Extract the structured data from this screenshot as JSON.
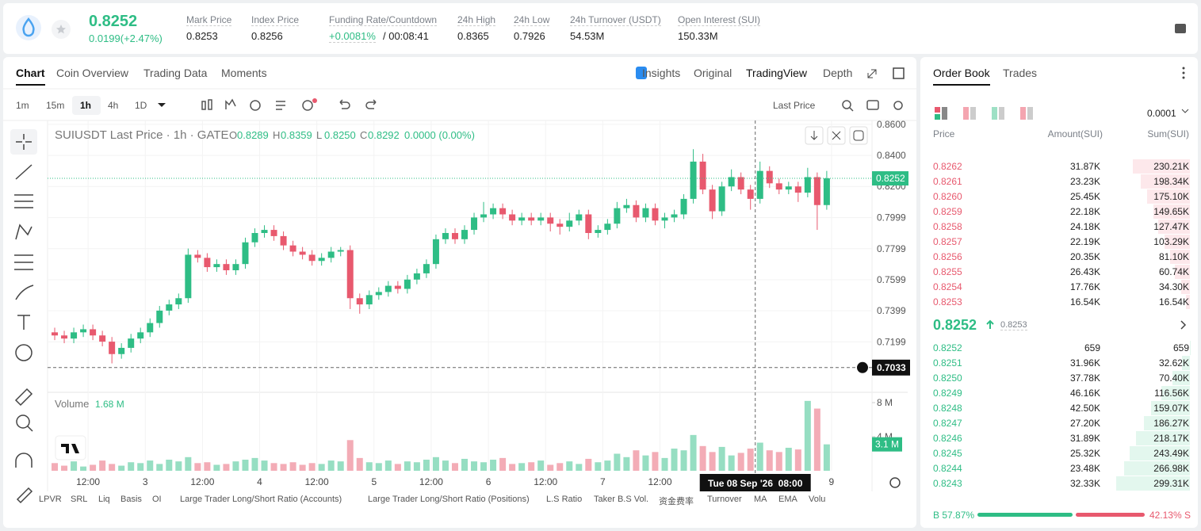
{
  "header": {
    "price": "0.8252",
    "change": "0.0199(+2.47%)",
    "stats": [
      {
        "label": "Mark Price",
        "value": "0.8253"
      },
      {
        "label": "Index Price",
        "value": "0.8256"
      },
      {
        "label": "Funding Rate/Countdown",
        "value": "+0.0081%",
        "extra": "/ 00:08:41"
      },
      {
        "label": "24h High",
        "value": "0.8365"
      },
      {
        "label": "24h Low",
        "value": "0.7926"
      },
      {
        "label": "24h Turnover (USDT)",
        "value": "54.53M"
      },
      {
        "label": "Open Interest (SUI)",
        "value": "150.33M"
      }
    ]
  },
  "tabs": [
    "Chart",
    "Coin Overview",
    "Trading Data",
    "Moments"
  ],
  "views": [
    "Insights",
    "Original",
    "TradingView",
    "Depth"
  ],
  "intervals": [
    "1m",
    "15m",
    "1h",
    "4h",
    "1D"
  ],
  "price_source": "Last Price",
  "legend": {
    "symbol": "SUIUSDT Last Price · 1h · GATE",
    "ohlc": [
      {
        "label": "O",
        "value": "0.8289"
      },
      {
        "label": "H",
        "value": "0.8359"
      },
      {
        "label": "L",
        "value": "0.8250"
      },
      {
        "label": "C",
        "value": "0.8292"
      }
    ],
    "change": "0.0000 (0.00%)"
  },
  "chart_data": {
    "type": "candlestick",
    "x": [
      -19,
      -17,
      -15,
      -13,
      -11,
      -9,
      -7,
      -5,
      -3,
      -1,
      1,
      3,
      5,
      7,
      9,
      11,
      13,
      15,
      17,
      19,
      21,
      23,
      25,
      27,
      29,
      31,
      33,
      35,
      37,
      39,
      41,
      43,
      45,
      47,
      49,
      51,
      53,
      55,
      57,
      59,
      61,
      63,
      65,
      67,
      69,
      71,
      73,
      75,
      77,
      79,
      81,
      83,
      85,
      87,
      89,
      91,
      93,
      95,
      97,
      99,
      101,
      103,
      105,
      107,
      109,
      111,
      113,
      115,
      117,
      119,
      121,
      123,
      125,
      127,
      129,
      131,
      133,
      135,
      137,
      139,
      141,
      143
    ],
    "open": [
      0.726,
      0.724,
      0.722,
      0.726,
      0.728,
      0.724,
      0.72,
      0.712,
      0.716,
      0.722,
      0.726,
      0.732,
      0.74,
      0.744,
      0.748,
      0.776,
      0.774,
      0.768,
      0.77,
      0.766,
      0.77,
      0.784,
      0.79,
      0.792,
      0.788,
      0.782,
      0.778,
      0.776,
      0.772,
      0.774,
      0.778,
      0.779,
      0.748,
      0.744,
      0.75,
      0.752,
      0.756,
      0.754,
      0.76,
      0.764,
      0.77,
      0.786,
      0.79,
      0.786,
      0.792,
      0.8,
      0.802,
      0.806,
      0.802,
      0.798,
      0.8,
      0.798,
      0.8,
      0.796,
      0.794,
      0.798,
      0.802,
      0.79,
      0.792,
      0.796,
      0.806,
      0.808,
      0.8,
      0.806,
      0.798,
      0.8,
      0.802,
      0.812,
      0.836,
      0.818,
      0.804,
      0.82,
      0.826,
      0.818,
      0.812,
      0.83,
      0.822,
      0.818,
      0.82,
      0.816,
      0.826,
      0.808
    ],
    "high": [
      0.729,
      0.727,
      0.729,
      0.731,
      0.731,
      0.727,
      0.723,
      0.719,
      0.725,
      0.729,
      0.735,
      0.743,
      0.747,
      0.751,
      0.78,
      0.779,
      0.777,
      0.773,
      0.773,
      0.773,
      0.787,
      0.793,
      0.795,
      0.795,
      0.791,
      0.785,
      0.781,
      0.779,
      0.777,
      0.781,
      0.781,
      0.782,
      0.751,
      0.753,
      0.755,
      0.759,
      0.759,
      0.763,
      0.767,
      0.773,
      0.789,
      0.793,
      0.793,
      0.795,
      0.803,
      0.81,
      0.809,
      0.809,
      0.805,
      0.803,
      0.803,
      0.803,
      0.803,
      0.799,
      0.803,
      0.805,
      0.805,
      0.795,
      0.799,
      0.81,
      0.812,
      0.811,
      0.809,
      0.809,
      0.803,
      0.805,
      0.815,
      0.844,
      0.841,
      0.821,
      0.823,
      0.831,
      0.829,
      0.821,
      0.836,
      0.833,
      0.825,
      0.823,
      0.823,
      0.832,
      0.829,
      0.83
    ],
    "low": [
      0.721,
      0.719,
      0.719,
      0.723,
      0.721,
      0.717,
      0.706,
      0.709,
      0.713,
      0.719,
      0.723,
      0.729,
      0.737,
      0.741,
      0.745,
      0.771,
      0.765,
      0.765,
      0.763,
      0.763,
      0.767,
      0.781,
      0.787,
      0.785,
      0.779,
      0.775,
      0.773,
      0.769,
      0.769,
      0.771,
      0.775,
      0.741,
      0.738,
      0.741,
      0.747,
      0.749,
      0.751,
      0.751,
      0.757,
      0.761,
      0.767,
      0.783,
      0.783,
      0.783,
      0.789,
      0.797,
      0.799,
      0.799,
      0.795,
      0.795,
      0.795,
      0.795,
      0.791,
      0.789,
      0.791,
      0.795,
      0.786,
      0.787,
      0.789,
      0.793,
      0.803,
      0.797,
      0.797,
      0.795,
      0.793,
      0.797,
      0.799,
      0.809,
      0.815,
      0.799,
      0.801,
      0.817,
      0.815,
      0.805,
      0.809,
      0.819,
      0.815,
      0.815,
      0.81,
      0.813,
      0.792,
      0.805
    ],
    "close": [
      0.724,
      0.722,
      0.726,
      0.728,
      0.724,
      0.72,
      0.712,
      0.716,
      0.722,
      0.726,
      0.732,
      0.74,
      0.744,
      0.748,
      0.776,
      0.774,
      0.768,
      0.77,
      0.766,
      0.77,
      0.784,
      0.79,
      0.792,
      0.788,
      0.782,
      0.778,
      0.776,
      0.772,
      0.774,
      0.778,
      0.779,
      0.748,
      0.744,
      0.75,
      0.752,
      0.756,
      0.754,
      0.76,
      0.764,
      0.77,
      0.786,
      0.79,
      0.786,
      0.792,
      0.8,
      0.802,
      0.806,
      0.802,
      0.798,
      0.8,
      0.798,
      0.8,
      0.796,
      0.794,
      0.798,
      0.802,
      0.79,
      0.792,
      0.796,
      0.806,
      0.808,
      0.8,
      0.806,
      0.798,
      0.8,
      0.802,
      0.812,
      0.836,
      0.818,
      0.804,
      0.82,
      0.826,
      0.818,
      0.812,
      0.83,
      0.822,
      0.818,
      0.82,
      0.816,
      0.826,
      0.808,
      0.8252
    ],
    "volume": [
      0.9,
      0.6,
      1.1,
      0.5,
      0.7,
      1.2,
      0.8,
      0.6,
      1.0,
      0.9,
      1.2,
      0.8,
      1.3,
      1.1,
      1.6,
      0.9,
      1.0,
      0.7,
      0.8,
      1.1,
      1.3,
      1.5,
      1.2,
      0.9,
      0.8,
      1.0,
      0.7,
      0.9,
      0.8,
      1.2,
      1.1,
      3.6,
      1.5,
      1.0,
      0.9,
      1.2,
      0.8,
      1.1,
      1.0,
      1.3,
      1.6,
      1.2,
      0.9,
      1.4,
      1.1,
      1.0,
      1.3,
      1.5,
      0.8,
      0.9,
      1.0,
      1.2,
      0.7,
      0.9,
      1.1,
      0.8,
      1.4,
      1.0,
      1.2,
      2.0,
      1.6,
      2.4,
      1.8,
      2.2,
      1.5,
      2.6,
      2.4,
      4.2,
      2.9,
      2.2,
      2.8,
      1.8,
      2.1,
      2.6,
      3.3,
      2.4,
      2.2,
      2.7,
      2.5,
      8.2,
      7.3,
      3.1
    ],
    "up_color": "#2ebd85",
    "down_color": "#e8596e",
    "xlim": [
      -20.5,
      152.5
    ],
    "xticks": [
      {
        "value": -12,
        "label": "12:00"
      },
      {
        "value": 0,
        "label": "3"
      },
      {
        "value": 12,
        "label": "12:00"
      },
      {
        "value": 24,
        "label": "4"
      },
      {
        "value": 36,
        "label": "12:00"
      },
      {
        "value": 48,
        "label": "5"
      },
      {
        "value": 60,
        "label": "12:00"
      },
      {
        "value": 72,
        "label": "6"
      },
      {
        "value": 84,
        "label": "12:00"
      },
      {
        "value": 96,
        "label": "7"
      },
      {
        "value": 108,
        "label": "12:00"
      },
      {
        "value": 144,
        "label": "9"
      }
    ],
    "ylim": [
      0.6889,
      0.8625
    ],
    "yticks": [
      {
        "value": 0.86,
        "label": "0.8600"
      },
      {
        "value": 0.84,
        "label": "0.8400"
      },
      {
        "value": 0.82,
        "label": "0.8200"
      },
      0.7999,
      0.7799,
      0.7599,
      0.7399,
      0.7199
    ],
    "volume_ylim": [
      0,
      8.93
    ],
    "volume_yticks": [
      {
        "value": 8,
        "label": "8 M"
      },
      {
        "value": 4,
        "label": "4 M"
      }
    ],
    "volume_title": "Volume",
    "volume_legend": "1.68 M",
    "last_volume_label": "3.1 M",
    "last_price": {
      "value": 0.8252,
      "label": "0.8252"
    },
    "crosshair": {
      "x": 128,
      "x_label": "Tue 08 Sep '26  08:00",
      "y": 0.7033,
      "y_label": "0.7033"
    },
    "grid": true
  },
  "indicators": [
    "LPVR",
    "SRL",
    "Liq",
    "Basis",
    "OI",
    "Large Trader Long/Short Ratio (Accounts)",
    "Large Trader Long/Short Ratio (Positions)",
    "L.S Ratio",
    "Taker B.S Vol.",
    "资金费率",
    "Turnover",
    "MA",
    "EMA",
    "Volu"
  ],
  "order_book": {
    "tabs": [
      "Order Book",
      "Trades"
    ],
    "precision": "0.0001",
    "columns": [
      "Price",
      "Amount(SUI)",
      "Sum(SUI)"
    ],
    "asks": [
      [
        "0.8262",
        "31.87K",
        "230.21K"
      ],
      [
        "0.8261",
        "23.23K",
        "198.34K"
      ],
      [
        "0.8260",
        "25.45K",
        "175.10K"
      ],
      [
        "0.8259",
        "22.18K",
        "149.65K"
      ],
      [
        "0.8258",
        "24.18K",
        "127.47K"
      ],
      [
        "0.8257",
        "22.19K",
        "103.29K"
      ],
      [
        "0.8256",
        "20.35K",
        "81.10K"
      ],
      [
        "0.8255",
        "26.43K",
        "60.74K"
      ],
      [
        "0.8254",
        "17.76K",
        "34.30K"
      ],
      [
        "0.8253",
        "16.54K",
        "16.54K"
      ]
    ],
    "last": "0.8252",
    "mark": "0.8253",
    "bids": [
      [
        "0.8252",
        "659",
        "659"
      ],
      [
        "0.8251",
        "31.96K",
        "32.62K"
      ],
      [
        "0.8250",
        "37.78K",
        "70.40K"
      ],
      [
        "0.8249",
        "46.16K",
        "116.56K"
      ],
      [
        "0.8248",
        "42.50K",
        "159.07K"
      ],
      [
        "0.8247",
        "27.20K",
        "186.27K"
      ],
      [
        "0.8246",
        "31.89K",
        "218.17K"
      ],
      [
        "0.8245",
        "25.32K",
        "243.49K"
      ],
      [
        "0.8244",
        "23.48K",
        "266.98K"
      ],
      [
        "0.8243",
        "32.33K",
        "299.31K"
      ]
    ],
    "buy": "B 57.87%",
    "sell": "42.13% S"
  }
}
